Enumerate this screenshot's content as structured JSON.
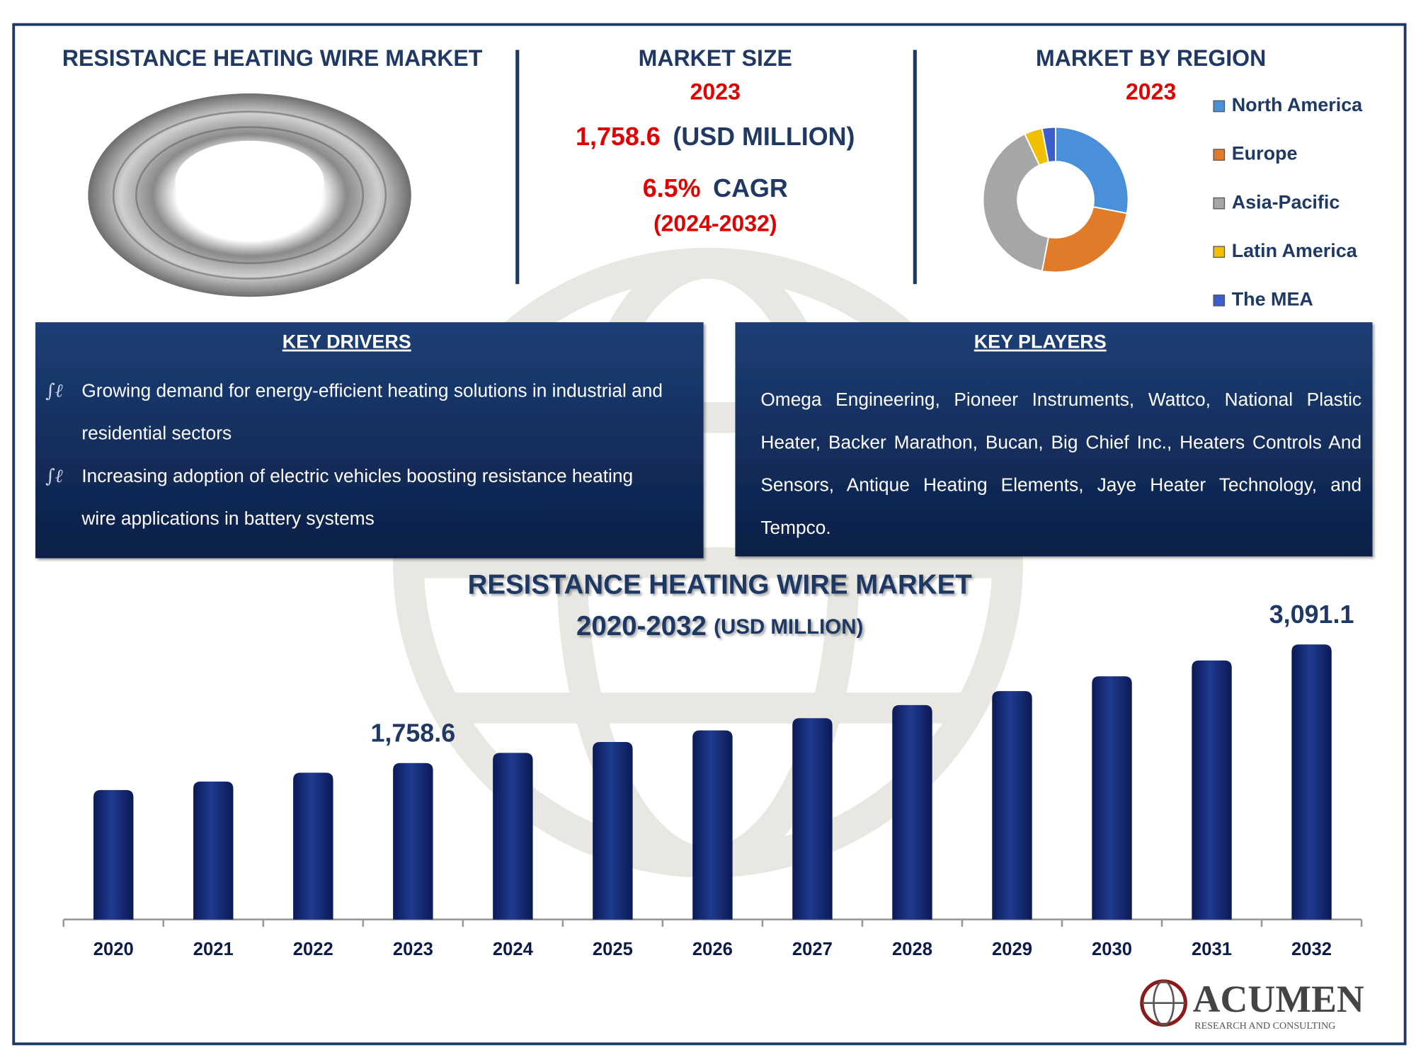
{
  "header": {
    "title": "RESISTANCE HEATING WIRE MARKET"
  },
  "market_size": {
    "title": "MARKET SIZE",
    "year": "2023",
    "value": "1,758.6",
    "unit": "(USD MILLION)",
    "cagr": "6.5%",
    "cagr_label": "CAGR",
    "period": "(2024-2032)"
  },
  "key_drivers": {
    "title": "KEY DRIVERS",
    "items": [
      "Growing demand for energy-efficient heating solutions in industrial and residential sectors",
      "Increasing adoption of electric vehicles boosting resistance heating wire applications in battery systems"
    ]
  },
  "key_players": {
    "title": "KEY PLAYERS",
    "text": "Omega Engineering, Pioneer Instruments, Wattco, National Plastic Heater, Backer Marathon, Bucan, Big Chief Inc., Heaters Controls And Sensors, Antique Heating Elements, Jaye Heater Technology, and Tempco."
  },
  "brand": {
    "name": "ACUMEN",
    "tagline": "RESEARCH AND CONSULTING"
  },
  "chart_data": [
    {
      "type": "pie",
      "title": "MARKET BY REGION",
      "subtitle": "2023",
      "categories": [
        "North America",
        "Europe",
        "Asia-Pacific",
        "Latin America",
        "The MEA"
      ],
      "values": [
        28,
        25,
        40,
        4,
        3
      ],
      "colors": [
        "#4a90d9",
        "#e07b29",
        "#a6a6a6",
        "#f0c000",
        "#3a5fcd"
      ],
      "legend": "right"
    },
    {
      "type": "bar",
      "title": "RESISTANCE HEATING WIRE MARKET",
      "subtitle": "2020-2032",
      "unit": "(USD MILLION)",
      "categories": [
        "2020",
        "2021",
        "2022",
        "2023",
        "2024",
        "2025",
        "2026",
        "2027",
        "2028",
        "2029",
        "2030",
        "2031",
        "2032"
      ],
      "values": [
        1455,
        1550,
        1650,
        1758.6,
        1873,
        1995,
        2125,
        2263,
        2410,
        2567,
        2733,
        2911,
        3091.1
      ],
      "value_labels": [
        null,
        null,
        null,
        "1,758.6",
        null,
        null,
        null,
        null,
        null,
        null,
        null,
        null,
        "3,091.1"
      ],
      "color": "#14276b"
    }
  ]
}
